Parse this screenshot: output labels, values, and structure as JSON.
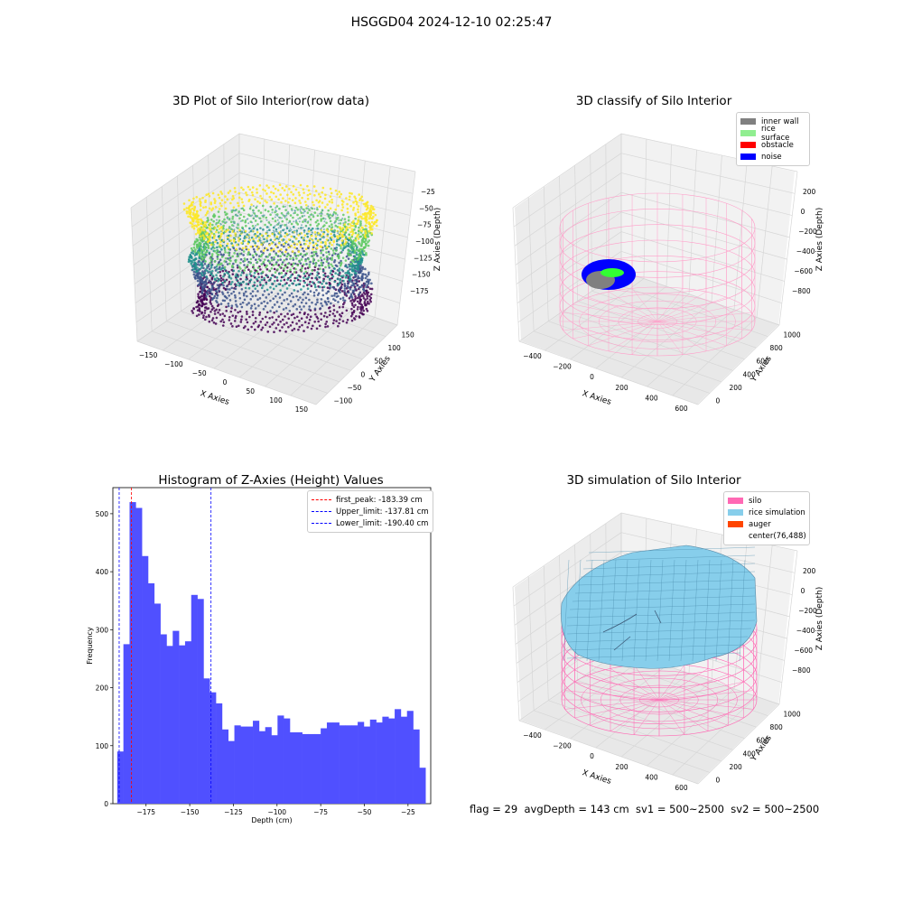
{
  "figure": {
    "suptitle": "HSGGD04 2024-12-10 02:25:47",
    "status_line": "flag = 29  avgDepth = 143 cm  sv1 = 500~2500  sv2 = 500~2500"
  },
  "colors": {
    "silo": "#ff69b4",
    "inner_wall": "#808080",
    "rice_surface": "#90ee90",
    "obstacle": "#ff0000",
    "noise": "#0000ff",
    "rice_simulation": "#87ceeb",
    "auger": "#ff4500",
    "histogram_bar": "#5050ff",
    "first_peak_line": "#ff0000",
    "limit_lines": "#0000ff"
  },
  "chart_data": [
    {
      "type": "scatter",
      "subtype": "3d",
      "title": "3D Plot of Silo Interior(row data)",
      "xlabel": "X Axies",
      "ylabel": "Y Axies",
      "zlabel": "Z Axies (Depth)",
      "x_ticks": [
        "−150",
        "−100",
        "−50",
        "0",
        "50",
        "100",
        "150"
      ],
      "y_ticks": [
        "−100",
        "−50",
        "0",
        "50",
        "100",
        "150"
      ],
      "z_ticks": [
        "−25",
        "−50",
        "−75",
        "−100",
        "−125",
        "−150",
        "−175"
      ],
      "colormap": "viridis",
      "grid": true
    },
    {
      "type": "scatter",
      "subtype": "3d",
      "title": "3D classify of Silo Interior",
      "xlabel": "X Axies",
      "ylabel": "Y Axies",
      "zlabel": "Z Axies (Depth)",
      "x_ticks": [
        "−400",
        "−200",
        "0",
        "200",
        "400",
        "600"
      ],
      "y_ticks": [
        "0",
        "200",
        "400",
        "600",
        "800",
        "1000"
      ],
      "z_ticks": [
        "200",
        "0",
        "−200",
        "−400",
        "−600",
        "−800"
      ],
      "legend_position": "top-right",
      "legend": [
        "inner wall",
        "rice surface",
        "obstacle",
        "noise"
      ],
      "grid": true
    },
    {
      "type": "bar",
      "subtype": "histogram",
      "title": "Histogram of Z-Axies (Height) Values",
      "xlabel": "Depth (cm)",
      "ylabel": "Frequency",
      "xlim": [
        -194,
        -12
      ],
      "ylim": [
        0,
        545
      ],
      "x_ticks": [
        "−175",
        "−150",
        "−125",
        "−100",
        "−75",
        "−50",
        "−25"
      ],
      "x_tick_values": [
        -175,
        -150,
        -125,
        -100,
        -75,
        -50,
        -25
      ],
      "y_ticks": [
        0,
        100,
        200,
        300,
        400,
        500
      ],
      "bin_start": -191.5,
      "bin_width": 3.53,
      "values": [
        90,
        275,
        520,
        510,
        427,
        380,
        345,
        292,
        272,
        298,
        273,
        280,
        360,
        353,
        216,
        192,
        173,
        128,
        108,
        135,
        133,
        133,
        143,
        125,
        132,
        118,
        152,
        147,
        123,
        123,
        120,
        120,
        120,
        130,
        140,
        140,
        135,
        135,
        135,
        141,
        133,
        145,
        140,
        150,
        147,
        163,
        150,
        160,
        128,
        62
      ],
      "vlines": [
        {
          "label": "first_peak: -183.39 cm",
          "x": -183.39,
          "color": "#ff0000"
        },
        {
          "label": "Upper_limit: -137.81 cm",
          "x": -137.81,
          "color": "#0000ff"
        },
        {
          "label": "Lower_limit: -190.40 cm",
          "x": -190.4,
          "color": "#0000ff"
        }
      ],
      "legend_position": "top-right"
    },
    {
      "type": "area",
      "subtype": "3d-surface",
      "title": "3D simulation of Silo Interior",
      "xlabel": "X Axies",
      "ylabel": "Y Axies",
      "zlabel": "Z Axies (Depth)",
      "x_ticks": [
        "−400",
        "−200",
        "0",
        "200",
        "400",
        "600"
      ],
      "y_ticks": [
        "0",
        "200",
        "400",
        "600",
        "800",
        "1000"
      ],
      "z_ticks": [
        "200",
        "0",
        "−200",
        "−400",
        "−600",
        "−800"
      ],
      "legend_position": "top-right",
      "legend": [
        "silo",
        "rice simulation",
        "auger",
        "center(76,488)"
      ],
      "grid": true
    }
  ]
}
